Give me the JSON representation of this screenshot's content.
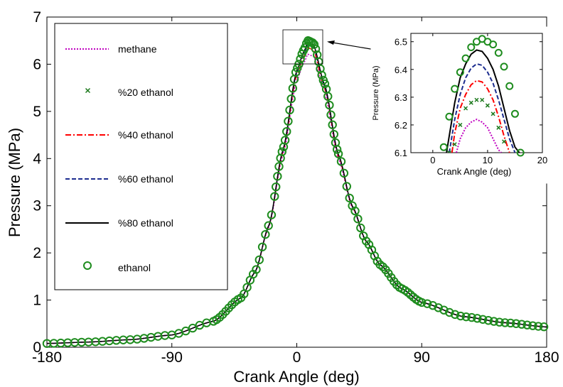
{
  "chart_data": {
    "type": "line",
    "xlabel": "Crank Angle (deg)",
    "ylabel": "Pressure (MPa)",
    "xlim": [
      -180,
      180
    ],
    "ylim": [
      0,
      7
    ],
    "xticks": [
      "-180",
      "-90",
      "0",
      "90",
      "180"
    ],
    "yticks": [
      "0",
      "1",
      "2",
      "3",
      "4",
      "5",
      "6",
      "7"
    ],
    "grid": false,
    "legend_position": "top-left",
    "series": [
      {
        "name": "methane",
        "color": "#c000c0",
        "style": "dotted",
        "peak": 6.22
      },
      {
        "name": "%20 ethanol",
        "color": "#1e7a1e",
        "style": "x-marker",
        "peak": 6.3
      },
      {
        "name": "%40 ethanol",
        "color": "#ff0000",
        "style": "dash-dot",
        "peak": 6.36
      },
      {
        "name": "%60 ethanol",
        "color": "#1c2d8f",
        "style": "dashed",
        "peak": 6.42
      },
      {
        "name": "%80 ethanol",
        "color": "#000000",
        "style": "solid",
        "peak": 6.47
      },
      {
        "name": "ethanol",
        "color": "#1e8c1e",
        "style": "circle-marker",
        "peak": 6.51
      }
    ],
    "main_curve_points": [
      [
        -180,
        0.08
      ],
      [
        -150,
        0.11
      ],
      [
        -120,
        0.16
      ],
      [
        -90,
        0.26
      ],
      [
        -60,
        0.55
      ],
      [
        -40,
        1.05
      ],
      [
        -30,
        1.6
      ],
      [
        -20,
        2.6
      ],
      [
        -10,
        4.2
      ],
      [
        0,
        5.9
      ],
      [
        5,
        6.3
      ],
      [
        8,
        6.5
      ],
      [
        12,
        6.45
      ],
      [
        20,
        5.6
      ],
      [
        30,
        4.1
      ],
      [
        40,
        3.0
      ],
      [
        50,
        2.25
      ],
      [
        60,
        1.75
      ],
      [
        75,
        1.25
      ],
      [
        90,
        0.95
      ],
      [
        120,
        0.65
      ],
      [
        150,
        0.52
      ],
      [
        180,
        0.43
      ]
    ],
    "inset": {
      "xlabel": "Crank Angle (deg)",
      "ylabel": "Pressure (MPa)",
      "xlim": [
        -4,
        20
      ],
      "ylim": [
        6.1,
        6.53
      ],
      "xticks": [
        "0",
        "10",
        "20"
      ],
      "yticks": [
        "6.1",
        "6.2",
        "6.3",
        "6.4",
        "6.5"
      ],
      "curves": [
        {
          "name": "methane",
          "x": [
            4.3,
            5,
            6,
            7,
            8,
            9,
            10,
            11,
            12,
            12.5
          ],
          "y": [
            6.1,
            6.15,
            6.19,
            6.21,
            6.22,
            6.21,
            6.19,
            6.15,
            6.11,
            6.1
          ]
        },
        {
          "name": "%40 ethanol",
          "x": [
            3.5,
            4,
            5,
            6,
            7,
            8,
            9,
            10,
            11,
            12,
            13,
            14
          ],
          "y": [
            6.1,
            6.17,
            6.26,
            6.31,
            6.345,
            6.36,
            6.355,
            6.33,
            6.29,
            6.23,
            6.16,
            6.1
          ]
        },
        {
          "name": "%60 ethanol",
          "x": [
            3,
            4,
            5,
            6,
            7,
            8,
            9,
            10,
            11,
            12,
            13,
            14,
            15
          ],
          "y": [
            6.1,
            6.22,
            6.31,
            6.37,
            6.405,
            6.42,
            6.415,
            6.39,
            6.35,
            6.29,
            6.22,
            6.15,
            6.1
          ]
        },
        {
          "name": "%80 ethanol",
          "x": [
            2.5,
            3,
            4,
            5,
            6,
            7,
            8,
            9,
            10,
            11,
            12,
            13,
            14,
            15,
            15.8
          ],
          "y": [
            6.1,
            6.16,
            6.28,
            6.37,
            6.42,
            6.455,
            6.47,
            6.465,
            6.44,
            6.4,
            6.34,
            6.26,
            6.18,
            6.12,
            6.1
          ]
        }
      ],
      "x_markers": {
        "name": "%20 ethanol",
        "x": [
          3,
          4,
          5,
          6,
          7,
          8,
          9,
          10,
          11,
          12,
          13
        ],
        "y": [
          6.1,
          6.13,
          6.2,
          6.26,
          6.28,
          6.29,
          6.29,
          6.27,
          6.24,
          6.19,
          6.14
        ]
      },
      "circle_markers": {
        "name": "ethanol",
        "x": [
          2,
          3,
          4,
          5,
          6,
          7,
          8,
          9,
          10,
          11,
          12,
          13,
          14,
          15,
          16
        ],
        "y": [
          6.12,
          6.23,
          6.33,
          6.39,
          6.44,
          6.48,
          6.5,
          6.51,
          6.5,
          6.49,
          6.46,
          6.41,
          6.34,
          6.24,
          6.1
        ]
      }
    }
  }
}
